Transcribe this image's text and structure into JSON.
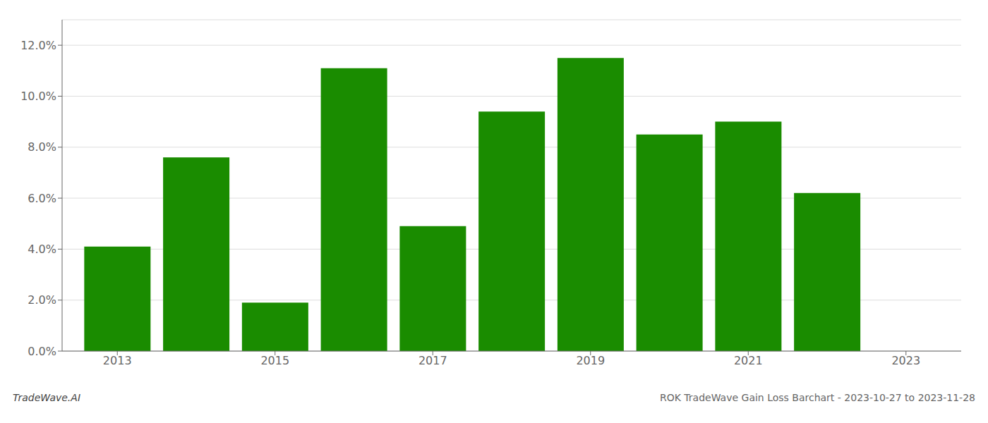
{
  "chart_data": {
    "type": "bar",
    "x": [
      2013,
      2014,
      2015,
      2016,
      2017,
      2018,
      2019,
      2020,
      2021,
      2022
    ],
    "values": [
      0.041,
      0.076,
      0.019,
      0.111,
      0.049,
      0.094,
      0.115,
      0.085,
      0.09,
      0.062
    ],
    "color": "#1a8c00",
    "xlim": [
      2012.3,
      2023.7
    ],
    "xticks": [
      2013,
      2015,
      2017,
      2019,
      2021,
      2023
    ],
    "ylim": [
      0,
      0.13
    ],
    "yticks": [
      {
        "value": 0.0,
        "label": "0.0%"
      },
      {
        "value": 0.02,
        "label": "2.0%"
      },
      {
        "value": 0.04,
        "label": "4.0%"
      },
      {
        "value": 0.06,
        "label": "6.0%"
      },
      {
        "value": 0.08,
        "label": "8.0%"
      },
      {
        "value": 0.1,
        "label": "10.0%"
      },
      {
        "value": 0.12,
        "label": "12.0%"
      }
    ],
    "grid": "y",
    "annotations": [
      "TradeWave.AI",
      "ROK TradeWave Gain Loss Barchart - 2023-10-27 to 2023-11-28"
    ]
  }
}
